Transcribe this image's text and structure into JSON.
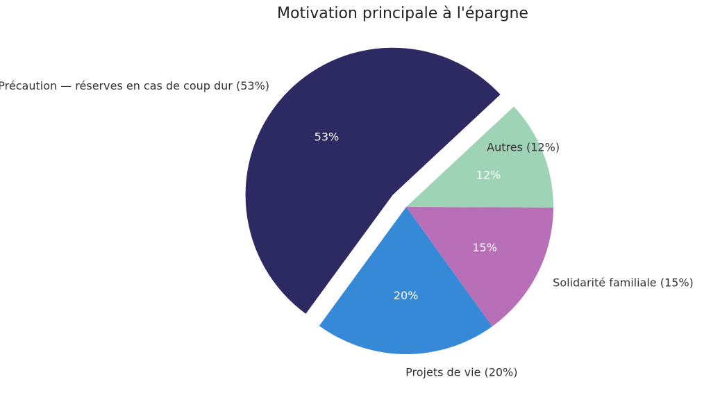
{
  "chart_data": {
    "type": "pie",
    "title": "Motivation principale à l'épargne",
    "slices": [
      {
        "label": "Précaution — réserves en cas de coup dur (53%)",
        "value": 53,
        "pct_label": "53%",
        "color": "#2d2a63",
        "exploded": true
      },
      {
        "label": "Projets de vie (20%)",
        "value": 20,
        "pct_label": "20%",
        "color": "#3589d6",
        "exploded": false
      },
      {
        "label": "Solidarité familiale (15%)",
        "value": 15,
        "pct_label": "15%",
        "color": "#b86fb8",
        "exploded": false
      },
      {
        "label": "Autres (12%)",
        "value": 12,
        "pct_label": "12%",
        "color": "#9fd3b6",
        "exploded": false
      }
    ],
    "start_angle_deg": 43,
    "direction": "counterclockwise"
  }
}
